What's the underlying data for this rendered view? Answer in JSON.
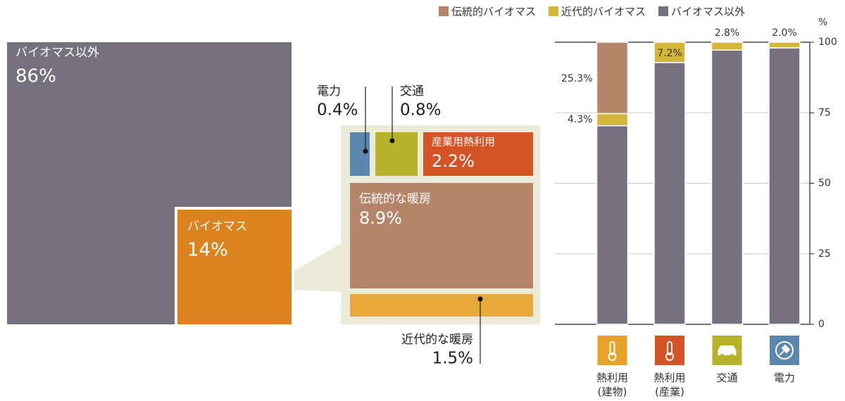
{
  "chart_data": [
    {
      "type": "treemap",
      "labels": [
        "バイオマス以外",
        "バイオマス"
      ],
      "values": [
        86,
        14
      ],
      "value_labels": [
        "86%",
        "14%"
      ],
      "colors": [
        "#77717f",
        "#dc8320"
      ],
      "breakdown": {
        "labels": [
          "電力",
          "交通",
          "産業用熱利用",
          "伝統的な暖房",
          "近代的な暖房"
        ],
        "values": [
          0.4,
          0.8,
          2.2,
          8.9,
          1.5
        ],
        "value_labels": [
          "0.4%",
          "0.8%",
          "2.2%",
          "8.9%",
          "1.5%"
        ],
        "colors": [
          "#5b86ad",
          "#b6b32a",
          "#d45327",
          "#b5856a",
          "#e8a83a"
        ]
      }
    },
    {
      "type": "bar",
      "stacked": true,
      "categories": [
        "熱利用(建物)",
        "熱利用(産業)",
        "交通",
        "電力"
      ],
      "icon_colors": [
        "#e7a22a",
        "#d45327",
        "#b6b32a",
        "#5b86ad"
      ],
      "series": [
        {
          "name": "伝統的バイオマス",
          "color": "#b5856a",
          "values": [
            25.3,
            null,
            null,
            null
          ],
          "value_labels": [
            "25.3%",
            null,
            null,
            null
          ]
        },
        {
          "name": "近代的バイオマス",
          "color": "#d4b63a",
          "values": [
            4.3,
            7.2,
            2.8,
            2.0
          ],
          "value_labels": [
            "4.3%",
            "7.2%",
            "2.8%",
            "2.0%"
          ]
        },
        {
          "name": "バイオマス以外",
          "color": "#77717f",
          "values": [
            70.4,
            92.8,
            97.2,
            98.0
          ]
        }
      ],
      "y_label": "%",
      "ylim": [
        0,
        100
      ],
      "yticks": [
        0,
        25,
        50,
        75,
        100
      ],
      "grid": true
    }
  ]
}
